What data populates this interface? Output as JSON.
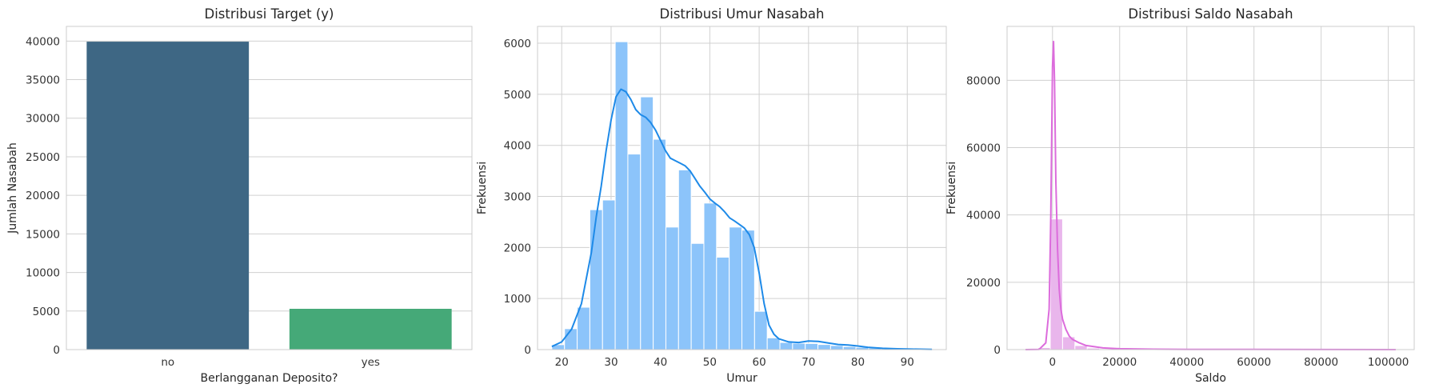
{
  "chart_data": [
    {
      "type": "bar",
      "title": "Distribusi Target (y)",
      "xlabel": "Berlangganan Deposito?",
      "ylabel": "Jumlah Nasabah",
      "categories": [
        "no",
        "yes"
      ],
      "values": [
        39922,
        5289
      ],
      "colors": [
        "#3e6784",
        "#45a978"
      ],
      "ylim": [
        0,
        41900
      ],
      "yticks": [
        0,
        5000,
        10000,
        15000,
        20000,
        25000,
        30000,
        35000,
        40000
      ],
      "grid": true
    },
    {
      "type": "bar",
      "subtype": "histogram",
      "title": "Distribusi Umur Nasabah",
      "xlabel": "Umur",
      "ylabel": "Frekuensi",
      "color": "#8cc4fa",
      "kde_color": "#1e8ae8",
      "bin_edges": [
        18,
        20.567,
        23.133,
        25.7,
        28.267,
        30.833,
        33.4,
        35.967,
        38.533,
        41.1,
        43.667,
        46.233,
        48.8,
        51.367,
        53.933,
        56.5,
        59.067,
        61.633,
        64.2,
        66.767,
        69.333,
        71.9,
        74.467,
        77.033,
        79.6,
        82.167,
        84.733,
        87.3,
        89.867,
        92.433,
        95
      ],
      "values": [
        97,
        410,
        830,
        2740,
        2930,
        6030,
        3830,
        4950,
        4120,
        2400,
        3520,
        2080,
        2870,
        1810,
        2400,
        2340,
        750,
        230,
        140,
        125,
        120,
        100,
        80,
        60,
        45,
        30,
        20,
        12,
        8,
        5
      ],
      "kde_x": [
        18,
        20,
        22,
        24,
        25,
        26,
        27,
        28,
        29,
        30,
        31,
        32,
        33,
        34,
        35,
        36,
        37,
        38,
        39,
        40,
        41,
        42,
        43,
        44,
        45,
        46,
        47,
        48,
        49,
        50,
        51,
        52,
        53,
        54,
        55,
        56,
        57,
        58,
        59,
        60,
        61,
        62,
        63,
        64,
        66,
        68,
        70,
        72,
        74,
        76,
        78,
        80,
        82,
        85,
        88,
        91,
        95
      ],
      "kde_y": [
        60,
        150,
        400,
        900,
        1400,
        1900,
        2600,
        3200,
        3900,
        4500,
        4950,
        5100,
        5050,
        4900,
        4700,
        4600,
        4550,
        4450,
        4300,
        4100,
        3900,
        3750,
        3700,
        3650,
        3600,
        3500,
        3350,
        3200,
        3080,
        2950,
        2870,
        2800,
        2700,
        2580,
        2520,
        2450,
        2380,
        2250,
        2000,
        1500,
        900,
        480,
        300,
        210,
        150,
        140,
        170,
        160,
        130,
        100,
        90,
        70,
        45,
        25,
        15,
        10,
        5
      ],
      "xlim": [
        15.1,
        97.9
      ],
      "ylim": [
        0,
        6330
      ],
      "xticks": [
        20,
        30,
        40,
        50,
        60,
        70,
        80,
        90
      ],
      "yticks": [
        0,
        1000,
        2000,
        3000,
        4000,
        5000,
        6000
      ],
      "grid": true
    },
    {
      "type": "bar",
      "subtype": "histogram",
      "title": "Distribusi Saldo Nasabah",
      "xlabel": "Saldo",
      "ylabel": "Frekuensi",
      "color": "#e9b6ec",
      "kde_color": "#dc6cdc",
      "bin_edges": [
        -8019,
        -4345,
        -671,
        3003,
        6677,
        10351,
        14025,
        17699,
        21373,
        25047,
        28721,
        32395,
        36069,
        39743,
        43417,
        47091,
        50765,
        54439,
        58113,
        61787,
        65461,
        69135,
        72809,
        76483,
        80157,
        83831,
        87505,
        91179,
        94853,
        98527,
        102201
      ],
      "values": [
        20,
        600,
        38800,
        3800,
        1200,
        450,
        200,
        100,
        60,
        40,
        25,
        15,
        10,
        8,
        6,
        5,
        4,
        3,
        3,
        2,
        2,
        2,
        1,
        1,
        1,
        1,
        1,
        1,
        1,
        1
      ],
      "kde_x": [
        -8019,
        -4000,
        -2000,
        -1000,
        -500,
        0,
        300,
        600,
        1000,
        1500,
        2000,
        2500,
        3000,
        4000,
        5000,
        6000,
        8000,
        10000,
        15000,
        20000,
        30000,
        40000,
        60000,
        80000,
        102201
      ],
      "kde_y": [
        0,
        50,
        2000,
        12000,
        40000,
        84000,
        91500,
        80000,
        50000,
        30000,
        18000,
        12000,
        9000,
        6000,
        4000,
        3000,
        2000,
        1200,
        500,
        250,
        120,
        80,
        40,
        20,
        0
      ],
      "xlim": [
        -13530,
        107712
      ],
      "ylim": [
        0,
        96000
      ],
      "xticks": [
        0,
        20000,
        40000,
        60000,
        80000,
        100000
      ],
      "yticks": [
        0,
        20000,
        40000,
        60000,
        80000
      ],
      "grid": true
    }
  ]
}
